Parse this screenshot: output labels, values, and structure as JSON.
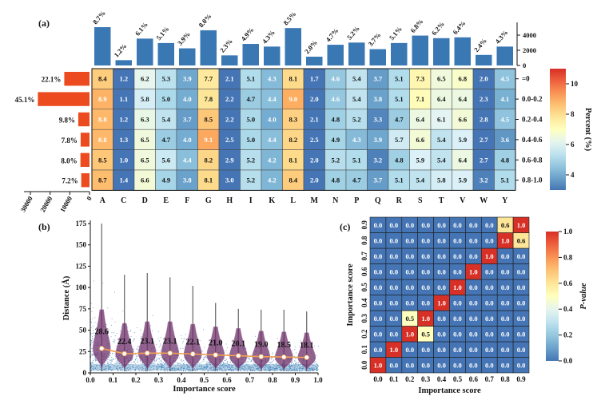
{
  "chart_data": [
    {
      "type": "heatmap",
      "panel_label": "(a)",
      "columns": [
        "A",
        "C",
        "D",
        "E",
        "F",
        "G",
        "H",
        "I",
        "K",
        "L",
        "M",
        "N",
        "P",
        "Q",
        "R",
        "S",
        "T",
        "V",
        "W",
        "Y"
      ],
      "rows": [
        "=0",
        "0.0-0.2",
        "0.2-0.4",
        "0.4-0.6",
        "0.6-0.8",
        "0.8-1.0"
      ],
      "values": [
        [
          8.4,
          1.2,
          6.2,
          5.3,
          3.9,
          7.7,
          2.1,
          5.1,
          4.3,
          8.1,
          1.7,
          4.6,
          5.4,
          3.7,
          5.1,
          7.3,
          6.5,
          6.8,
          2.0,
          4.5
        ],
        [
          8.9,
          1.1,
          5.8,
          5.0,
          4.0,
          7.8,
          2.2,
          4.7,
          4.4,
          9.0,
          2.0,
          4.6,
          5.4,
          3.8,
          5.1,
          7.1,
          6.4,
          6.4,
          2.3,
          4.1
        ],
        [
          8.8,
          1.2,
          6.3,
          5.4,
          3.7,
          8.5,
          2.2,
          5.0,
          4.0,
          8.3,
          2.1,
          4.8,
          5.2,
          3.3,
          4.7,
          6.4,
          6.1,
          6.6,
          2.8,
          4.5
        ],
        [
          8.8,
          1.3,
          6.5,
          4.7,
          4.0,
          9.1,
          2.5,
          5.0,
          4.4,
          8.2,
          2.5,
          4.9,
          4.3,
          3.9,
          5.7,
          6.6,
          5.4,
          5.9,
          2.7,
          3.6
        ],
        [
          8.5,
          1.0,
          6.5,
          5.6,
          4.4,
          8.2,
          2.9,
          5.2,
          4.2,
          8.1,
          2.0,
          5.2,
          5.1,
          3.2,
          4.8,
          5.9,
          5.4,
          6.4,
          2.7,
          4.8
        ],
        [
          8.7,
          1.4,
          6.6,
          4.9,
          3.8,
          8.1,
          3.0,
          5.2,
          4.2,
          8.4,
          2.0,
          4.8,
          4.7,
          3.7,
          5.1,
          5.4,
          5.8,
          5.9,
          3.2,
          5.1
        ]
      ],
      "colorbar": {
        "label": "Percent (%)",
        "ticks": [
          "4",
          "6",
          "8",
          "10"
        ],
        "range": [
          3,
          11
        ],
        "colormap": "RdYlBu_r"
      },
      "top_bars": {
        "type": "bar",
        "percent_labels": [
          "8.7%",
          "1.2%",
          "6.1%",
          "5.1%",
          "3.9%",
          "8.0%",
          "2.3%",
          "4.9%",
          "4.3%",
          "8.5%",
          "2.0%",
          "4.7%",
          "5.2%",
          "3.7%",
          "5.1%",
          "6.8%",
          "6.2%",
          "6.4%",
          "2.4%",
          "4.3%"
        ],
        "values": [
          5050,
          700,
          3540,
          2960,
          2260,
          4640,
          1330,
          2840,
          2490,
          4930,
          1160,
          2730,
          3020,
          2150,
          2960,
          3940,
          3600,
          3710,
          1390,
          2490
        ],
        "ticks": [
          "0",
          "2000",
          "4000"
        ],
        "ylim": [
          0,
          5200
        ],
        "color": "#3a78b4"
      },
      "left_bars": {
        "type": "bar",
        "percent_labels": [
          "22.1%",
          "45.1%",
          "9.8%",
          "7.8%",
          "8.0%",
          "7.2%"
        ],
        "values": [
          12800,
          26200,
          5700,
          4500,
          4600,
          4200
        ],
        "ticks": [
          "30000",
          "20000",
          "10000",
          "0"
        ],
        "xlim": [
          0,
          30000
        ],
        "color": "#ec4b1f"
      }
    },
    {
      "type": "scatter",
      "panel_label": "(b)",
      "xlabel": "Importance score",
      "ylabel": "Distance (Å)",
      "xlim": [
        0,
        1
      ],
      "ylim": [
        0,
        175
      ],
      "xticks": [
        "0.0",
        "0.1",
        "0.2",
        "0.3",
        "0.4",
        "0.5",
        "0.6",
        "0.7",
        "0.8",
        "0.9",
        "1.0"
      ],
      "yticks": [
        "0",
        "25",
        "50",
        "75",
        "100",
        "125",
        "150",
        "175"
      ],
      "violin_centers": [
        0.05,
        0.15,
        0.25,
        0.35,
        0.45,
        0.55,
        0.65,
        0.75,
        0.85,
        0.95
      ],
      "means": [
        28.6,
        22.4,
        23.1,
        23.1,
        22.1,
        21.0,
        20.1,
        19.0,
        18.5,
        18.1
      ],
      "mean_labels": [
        "28.6",
        "22.4",
        "23.1",
        "23.1",
        "22.1",
        "21.0",
        "20.1",
        "19.0",
        "18.5",
        "18.1"
      ],
      "violin_max": [
        175,
        115,
        117,
        112,
        102,
        82,
        75,
        74,
        74,
        72
      ],
      "colors": {
        "points": "#3b80b8",
        "violin": "#6e2f6a",
        "mean_line": "#f0a050"
      }
    },
    {
      "type": "heatmap",
      "panel_label": "(c)",
      "xlabel": "Importance score",
      "ylabel": "Importance score",
      "x": [
        "0.0",
        "0.1",
        "0.2",
        "0.3",
        "0.4",
        "0.5",
        "0.6",
        "0.7",
        "0.8",
        "0.9"
      ],
      "y": [
        "0.0",
        "0.1",
        "0.2",
        "0.3",
        "0.4",
        "0.5",
        "0.6",
        "0.7",
        "0.8",
        "0.9"
      ],
      "values": [
        [
          1.0,
          0.0,
          0.0,
          0.0,
          0.0,
          0.0,
          0.0,
          0.0,
          0.0,
          0.0
        ],
        [
          0.0,
          1.0,
          0.0,
          0.0,
          0.0,
          0.0,
          0.0,
          0.0,
          0.0,
          0.0
        ],
        [
          0.0,
          0.0,
          1.0,
          0.5,
          0.0,
          0.0,
          0.0,
          0.0,
          0.0,
          0.0
        ],
        [
          0.0,
          0.0,
          0.5,
          1.0,
          0.0,
          0.0,
          0.0,
          0.0,
          0.0,
          0.0
        ],
        [
          0.0,
          0.0,
          0.0,
          0.0,
          1.0,
          0.0,
          0.0,
          0.0,
          0.0,
          0.0
        ],
        [
          0.0,
          0.0,
          0.0,
          0.0,
          0.0,
          1.0,
          0.0,
          0.0,
          0.0,
          0.0
        ],
        [
          0.0,
          0.0,
          0.0,
          0.0,
          0.0,
          0.0,
          1.0,
          0.0,
          0.0,
          0.0
        ],
        [
          0.0,
          0.0,
          0.0,
          0.0,
          0.0,
          0.0,
          0.0,
          1.0,
          0.0,
          0.0
        ],
        [
          0.0,
          0.0,
          0.0,
          0.0,
          0.0,
          0.0,
          0.0,
          0.0,
          1.0,
          0.6
        ],
        [
          0.0,
          0.0,
          0.0,
          0.0,
          0.0,
          0.0,
          0.0,
          0.0,
          0.6,
          1.0
        ]
      ],
      "colorbar": {
        "label": "P-value",
        "ticks": [
          "0.0",
          "0.2",
          "0.4",
          "0.6",
          "0.8",
          "1.0"
        ],
        "range": [
          0,
          1
        ],
        "colormap": "RdYlBu_r"
      }
    }
  ]
}
